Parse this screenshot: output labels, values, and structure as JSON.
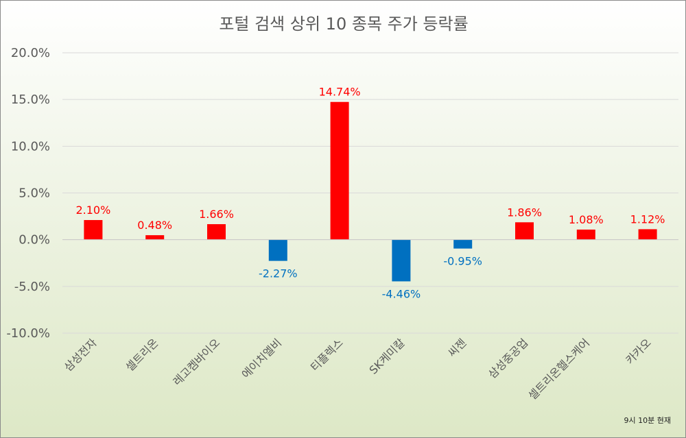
{
  "chart_data": {
    "type": "bar",
    "title": "포털 검색 상위 10 종목 주가 등락률",
    "categories": [
      "삼성전자",
      "셀트리온",
      "레고켐바이오",
      "에이치엘비",
      "티플렉스",
      "SK케미칼",
      "씨젠",
      "삼성중공업",
      "셀트리온헬스케어",
      "카카오"
    ],
    "values": [
      2.1,
      0.48,
      1.66,
      -2.27,
      14.74,
      -4.46,
      -0.95,
      1.86,
      1.08,
      1.12
    ],
    "data_labels": [
      "2.10%",
      "0.48%",
      "1.66%",
      "-2.27%",
      "14.74%",
      "-4.46%",
      "-0.95%",
      "1.86%",
      "1.08%",
      "1.12%"
    ],
    "ylim": [
      -10,
      20
    ],
    "yticks": [
      20,
      15,
      10,
      5,
      0,
      -5,
      -10
    ],
    "ytick_labels": [
      "20.0%",
      "15.0%",
      "10.0%",
      "5.0%",
      "0.0%",
      "-5.0%",
      "-10.0%"
    ],
    "colors": {
      "positive": "#ff0000",
      "negative": "#0070c0"
    },
    "grid": true,
    "note": "9시  10분 현재"
  }
}
